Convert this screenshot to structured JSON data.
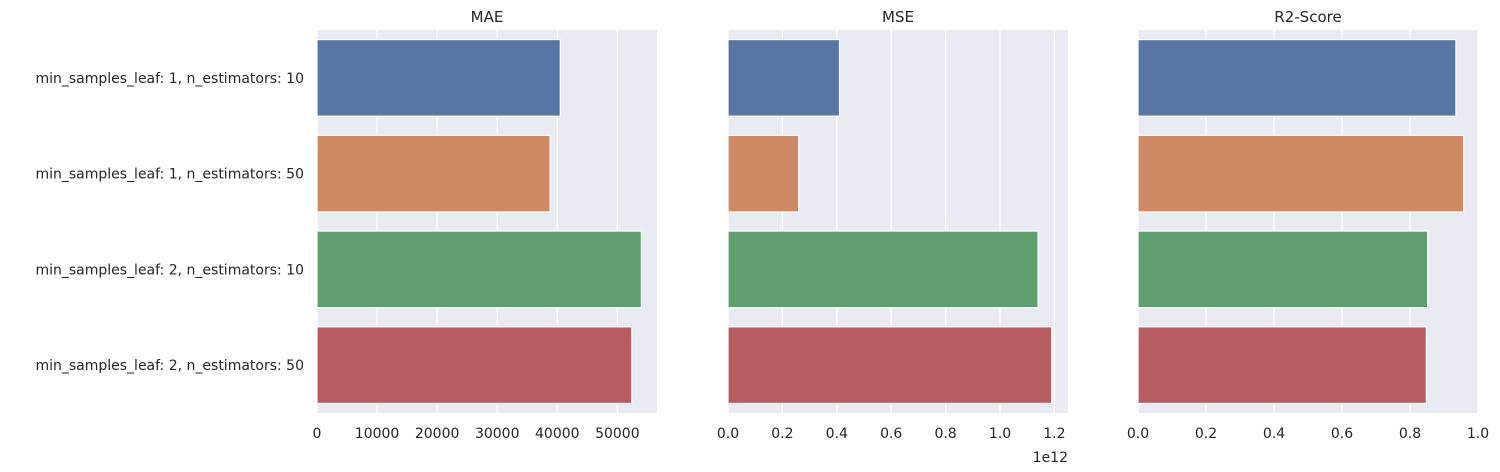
{
  "chart_data": [
    {
      "type": "bar",
      "orientation": "horizontal",
      "title": "MAE",
      "categories": [
        "min_samples_leaf: 1, n_estimators: 10",
        "min_samples_leaf: 1, n_estimators: 50",
        "min_samples_leaf: 2, n_estimators: 10",
        "min_samples_leaf: 2, n_estimators: 50"
      ],
      "values": [
        40500,
        38800,
        54000,
        52400
      ],
      "xlim": [
        0,
        56600
      ],
      "xticks": [
        0,
        10000,
        20000,
        30000,
        40000,
        50000
      ],
      "xtick_labels": [
        "0",
        "10000",
        "20000",
        "30000",
        "40000",
        "50000"
      ],
      "offset_label": "",
      "show_category_labels": true,
      "grid": true
    },
    {
      "type": "bar",
      "orientation": "horizontal",
      "title": "MSE",
      "categories": [
        "min_samples_leaf: 1, n_estimators: 10",
        "min_samples_leaf: 1, n_estimators: 50",
        "min_samples_leaf: 2, n_estimators: 10",
        "min_samples_leaf: 2, n_estimators: 50"
      ],
      "values": [
        410000000000,
        260000000000,
        1140000000000,
        1190000000000
      ],
      "xlim": [
        0,
        1250000000000
      ],
      "xticks": [
        0,
        200000000000,
        400000000000,
        600000000000,
        800000000000,
        1000000000000,
        1200000000000
      ],
      "xtick_labels": [
        "0.0",
        "0.2",
        "0.4",
        "0.6",
        "0.8",
        "1.0",
        "1.2"
      ],
      "offset_label": "1e12",
      "show_category_labels": false,
      "grid": true
    },
    {
      "type": "bar",
      "orientation": "horizontal",
      "title": "R2-Score",
      "categories": [
        "min_samples_leaf: 1, n_estimators: 10",
        "min_samples_leaf: 1, n_estimators: 50",
        "min_samples_leaf: 2, n_estimators: 10",
        "min_samples_leaf: 2, n_estimators: 50"
      ],
      "values": [
        0.935,
        0.958,
        0.852,
        0.848
      ],
      "xlim": [
        0,
        1.0
      ],
      "xticks": [
        0,
        0.2,
        0.4,
        0.6,
        0.8,
        1.0
      ],
      "xtick_labels": [
        "0.0",
        "0.2",
        "0.4",
        "0.6",
        "0.8",
        "1.0"
      ],
      "offset_label": "",
      "show_category_labels": false,
      "grid": true
    }
  ],
  "colors": {
    "bars": [
      "#5875a4",
      "#cc8963",
      "#5f9e6e",
      "#b55d60"
    ],
    "axes_background": "#eaeaf2",
    "grid": "#ffffff",
    "text": "#262626"
  }
}
